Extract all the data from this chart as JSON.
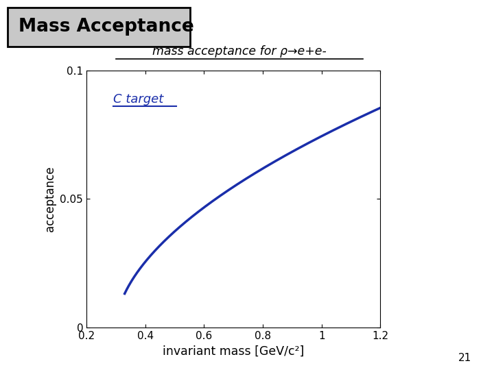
{
  "title_box": "Mass Acceptance",
  "subtitle": "mass acceptance for ρ→e+e-",
  "ylabel": "acceptance",
  "xlabel": "invariant mass [GeV/c²]",
  "annotation": "C target",
  "xlim": [
    0.2,
    1.2
  ],
  "ylim": [
    0.0,
    0.1
  ],
  "xticks": [
    0.2,
    0.4,
    0.6,
    0.8,
    1.0,
    1.2
  ],
  "xtick_labels": [
    "0.2",
    "0.4",
    "0.6",
    "0.8",
    "1",
    "1.2"
  ],
  "yticks": [
    0.0,
    0.05,
    0.1
  ],
  "ytick_labels": [
    "0",
    "0.05",
    "0.1"
  ],
  "curve_color": "#1a2eaa",
  "curve_x0": 0.3,
  "curve_amplitude": 0.0905,
  "curve_exponent": 0.55,
  "curve_start": 0.33,
  "curve_end": 1.2,
  "page_number": "21"
}
